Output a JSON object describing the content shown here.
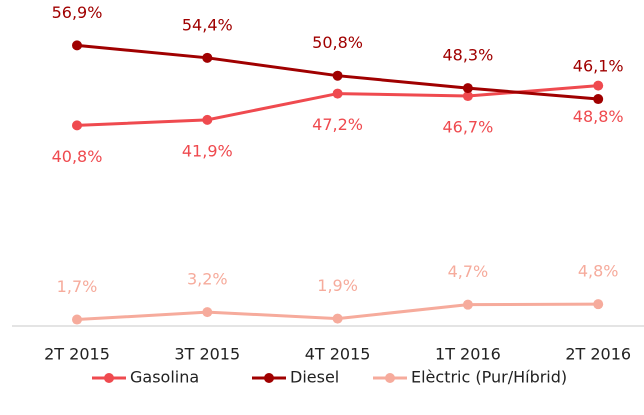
{
  "chart_data": {
    "type": "line",
    "categories": [
      "2T 2015",
      "3T 2015",
      "4T 2015",
      "1T 2016",
      "2T 2016"
    ],
    "ylim": [
      0,
      60
    ],
    "legend": "bottom",
    "series": [
      {
        "name": "Gasolina",
        "color": "#ef4a4f",
        "label_position": "below",
        "values": [
          40.8,
          41.9,
          47.2,
          46.7,
          48.8
        ],
        "value_labels": [
          "40,8%",
          "41,9%",
          "47,2%",
          "46,7%",
          "48,8%"
        ]
      },
      {
        "name": "Diesel",
        "color": "#a00000",
        "label_position": "above",
        "values": [
          56.9,
          54.4,
          50.8,
          48.3,
          46.1
        ],
        "value_labels": [
          "56,9%",
          "54,4%",
          "50,8%",
          "48,3%",
          "46,1%"
        ]
      },
      {
        "name": "Elèctric (Pur/Híbrid)",
        "color": "#f6ab9c",
        "label_position": "above",
        "values": [
          1.7,
          3.2,
          1.9,
          4.7,
          4.8
        ],
        "value_labels": [
          "1,7%",
          "3,2%",
          "1,9%",
          "4,7%",
          "4,8%"
        ]
      }
    ]
  }
}
